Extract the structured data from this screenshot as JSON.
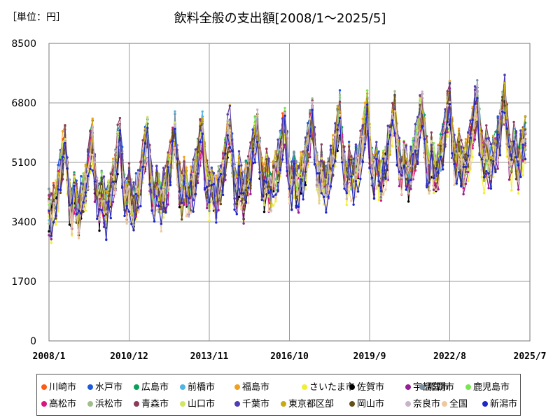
{
  "chart_data": {
    "type": "line",
    "title": "飲料全般の支出額[2008/1～2025/5]",
    "unit_label": "［単位：円］",
    "ylim": [
      0,
      8500
    ],
    "yticks": [
      0,
      1700,
      3400,
      5100,
      6800,
      8500
    ],
    "xticks": [
      "2008/1",
      "2010/12",
      "2013/11",
      "2016/10",
      "2019/9",
      "2022/8",
      "2025/7"
    ],
    "x_start": "2008/1",
    "x_end": "2025/7",
    "grid": true,
    "legend_position": "bottom",
    "series": [
      {
        "name": "川崎市",
        "color": "#ff5a14"
      },
      {
        "name": "水戸市",
        "color": "#1e5adc"
      },
      {
        "name": "広島市",
        "color": "#0aa05a"
      },
      {
        "name": "前橋市",
        "color": "#50b4e6"
      },
      {
        "name": "福島市",
        "color": "#f0a01e"
      },
      {
        "name": "さいたま市",
        "color": "#f0f032"
      },
      {
        "name": "佐賀市",
        "color": "#000000"
      },
      {
        "name": "宇都宮市",
        "color": "#961e96"
      },
      {
        "name": "那覇市",
        "color": "#7890a0"
      },
      {
        "name": "鹿児島市",
        "color": "#78e650"
      },
      {
        "name": "高松市",
        "color": "#dc147e"
      },
      {
        "name": "浜松市",
        "color": "#a0be8c"
      },
      {
        "name": "青森市",
        "color": "#8c3c5a"
      },
      {
        "name": "山口市",
        "color": "#d2e664"
      },
      {
        "name": "千葉市",
        "color": "#503cb4"
      },
      {
        "name": "東京都区部",
        "color": "#c8aa14"
      },
      {
        "name": "岡山市",
        "color": "#645014"
      },
      {
        "name": "奈良市",
        "color": "#c8b4c8"
      },
      {
        "name": "全国",
        "color": "#f0c8a0"
      },
      {
        "name": "新潟市",
        "color": "#1e28c8"
      }
    ]
  }
}
